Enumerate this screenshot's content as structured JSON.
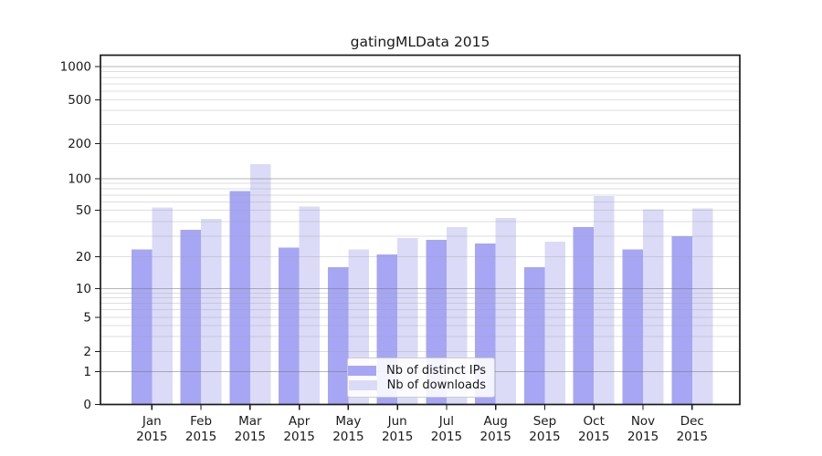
{
  "chart_data": {
    "type": "bar",
    "title": "gatingMLData 2015",
    "categories": [
      "Jan",
      "Feb",
      "Mar",
      "Apr",
      "May",
      "Jun",
      "Jul",
      "Aug",
      "Sep",
      "Oct",
      "Nov",
      "Dec"
    ],
    "x_tick_second_line": "2015",
    "series": [
      {
        "name": "Nb of distinct IPs",
        "color": "#a6a6f4",
        "values": [
          23,
          34,
          76,
          24,
          16,
          21,
          28,
          26,
          16,
          36,
          23,
          30
        ]
      },
      {
        "name": "Nb of downloads",
        "color": "#dbdbf8",
        "values": [
          53,
          42,
          133,
          54,
          23,
          29,
          36,
          43,
          27,
          68,
          51,
          52
        ]
      }
    ],
    "y_ticks": [
      0,
      1,
      2,
      5,
      10,
      20,
      50,
      100,
      200,
      500,
      1000
    ],
    "y_scale": "symlog",
    "ylim": [
      0,
      1260
    ],
    "xlabel": "",
    "ylabel": "",
    "grid": "on",
    "grid_major_values": [
      1,
      10,
      100,
      1000
    ],
    "legend_position": "lower center",
    "colors": {
      "spine": "#1a1a1a",
      "grid_major": "#bababa",
      "grid_minor": "#e7e7e7",
      "background": "#ffffff"
    }
  }
}
